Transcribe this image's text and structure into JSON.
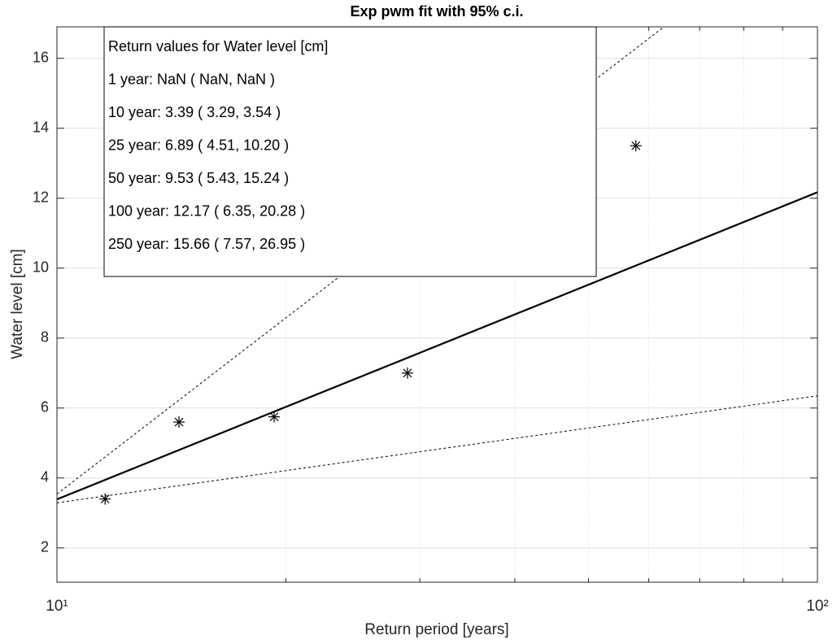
{
  "chart_data": {
    "type": "scatter",
    "title": "Exp pwm fit with 95% c.i.",
    "xlabel": "Return period [years]",
    "ylabel": "Water level [cm]",
    "xscale": "log",
    "xlim": [
      10,
      100
    ],
    "ylim": [
      1.02,
      16.9
    ],
    "xticks": [
      {
        "value": 10,
        "label": "10¹"
      },
      {
        "value": 100,
        "label": "10²"
      }
    ],
    "xminorticks": [
      20,
      30,
      40,
      50,
      60,
      70,
      80,
      90
    ],
    "yticks": [
      2,
      4,
      6,
      8,
      10,
      12,
      14,
      16
    ],
    "grid": true,
    "series": [
      {
        "type": "scatter",
        "marker": "*",
        "color": "#000000",
        "x": [
          11.57,
          14.47,
          19.3,
          28.9,
          57.7
        ],
        "values": [
          3.4,
          5.6,
          5.75,
          7.0,
          13.5
        ]
      },
      {
        "type": "line",
        "style": "solid",
        "color": "#000000",
        "x": [
          10,
          100
        ],
        "values": [
          3.39,
          12.17
        ]
      },
      {
        "type": "line",
        "style": "dashed",
        "color": "#000000",
        "x": [
          10,
          100
        ],
        "values": [
          3.54,
          20.28
        ]
      },
      {
        "type": "line",
        "style": "dashed",
        "color": "#000000",
        "x": [
          10,
          100
        ],
        "values": [
          3.29,
          6.35
        ]
      }
    ],
    "annotation": {
      "lines": [
        "Return values for Water level [cm]",
        "1 year: NaN ( NaN, NaN )",
        "10 year: 3.39 ( 3.29, 3.54 )",
        "25 year: 6.89 ( 4.51, 10.20 )",
        "50 year: 9.53 ( 5.43, 15.24 )",
        "100 year: 12.17 ( 6.35, 20.28 )",
        "250 year: 15.66 ( 7.57, 26.95 )"
      ]
    }
  }
}
